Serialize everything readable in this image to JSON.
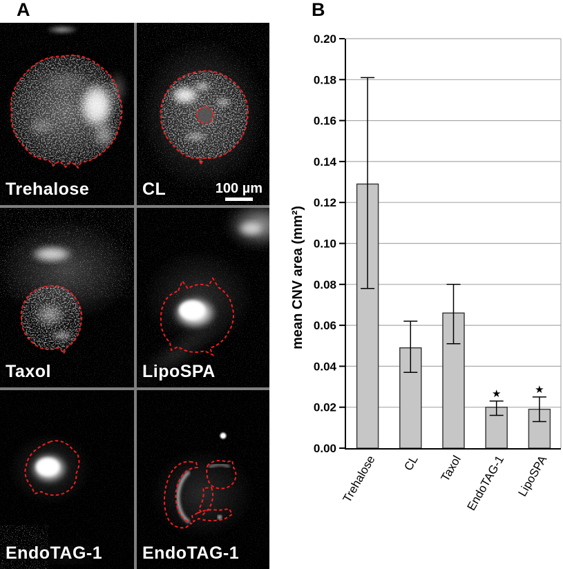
{
  "panel_a": {
    "label": "A",
    "tiles": [
      {
        "name": "trehalose",
        "label": "Trehalose"
      },
      {
        "name": "cl",
        "label": "CL",
        "scale_bar": "100 µm"
      },
      {
        "name": "taxol",
        "label": "Taxol"
      },
      {
        "name": "lipospa",
        "label": "LipoSPA"
      },
      {
        "name": "endotag-1-left",
        "label": "EndoTAG-1"
      },
      {
        "name": "endotag-1-right",
        "label": "EndoTAG-1"
      }
    ],
    "outline_color": "#f21d1d"
  },
  "panel_b": {
    "label": "B"
  },
  "chart_data": {
    "type": "bar",
    "title": "",
    "categories": [
      "Trehalose",
      "CL",
      "Taxol",
      "EndoTAG-1",
      "LipoSPA"
    ],
    "values": [
      0.129,
      0.049,
      0.066,
      0.02,
      0.019
    ],
    "error_low": [
      0.078,
      0.037,
      0.051,
      0.016,
      0.013
    ],
    "error_high": [
      0.181,
      0.062,
      0.08,
      0.023,
      0.025
    ],
    "significant": [
      false,
      false,
      false,
      true,
      true
    ],
    "significance_marker": "★",
    "xlabel": "",
    "ylabel": "mean CNV area (mm²)",
    "ylim": [
      0,
      0.2
    ],
    "ytick_step": 0.02,
    "grid": true,
    "legend_position": "none",
    "bar_color": "#c6c6c6",
    "bar_border_color": "#3c3c3c",
    "gridline_color": "#a9a9a9",
    "axis_color": "#000000",
    "error_bar_color": "#000000"
  }
}
